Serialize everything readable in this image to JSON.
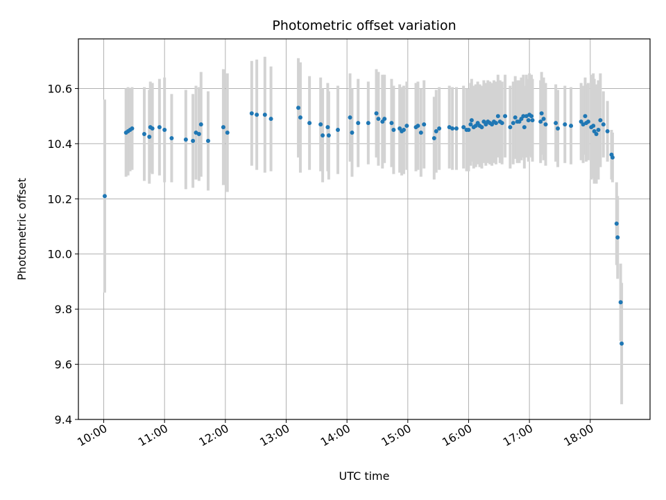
{
  "chart_data": {
    "type": "scatter",
    "title": "Photometric offset variation",
    "xlabel": "UTC time",
    "ylabel": "Photometric offset",
    "x_unit": "UTC clock time (HH:MM)",
    "xlim": [
      "09:35",
      "18:59"
    ],
    "ylim": [
      9.4,
      10.78
    ],
    "x_ticks": [
      "10:00",
      "11:00",
      "12:00",
      "13:00",
      "14:00",
      "15:00",
      "16:00",
      "17:00",
      "18:00"
    ],
    "y_ticks": [
      "9.4",
      "9.6",
      "9.8",
      "10.0",
      "10.2",
      "10.4",
      "10.6"
    ],
    "grid": true,
    "colors": {
      "points": "#1f77b4",
      "errorbars": "#d3d3d3",
      "grid": "#b0b0b0"
    },
    "series": [
      {
        "fields": [
          "time",
          "offset",
          "error"
        ],
        "points": [
          [
            "10:01",
            10.21,
            0.35
          ],
          [
            "10:22",
            10.44,
            0.16
          ],
          [
            "10:24",
            10.445,
            0.16
          ],
          [
            "10:26",
            10.45,
            0.15
          ],
          [
            "10:28",
            10.455,
            0.15
          ],
          [
            "10:40",
            10.435,
            0.17
          ],
          [
            "10:45",
            10.425,
            0.17
          ],
          [
            "10:46",
            10.46,
            0.165
          ],
          [
            "10:48",
            10.455,
            0.165
          ],
          [
            "10:55",
            10.46,
            0.175
          ],
          [
            "11:00",
            10.45,
            0.19
          ],
          [
            "11:07",
            10.42,
            0.16
          ],
          [
            "11:21",
            10.415,
            0.18
          ],
          [
            "11:28",
            10.41,
            0.17
          ],
          [
            "11:31",
            10.44,
            0.17
          ],
          [
            "11:34",
            10.435,
            0.17
          ],
          [
            "11:36",
            10.47,
            0.19
          ],
          [
            "11:43",
            10.41,
            0.18
          ],
          [
            "11:58",
            10.46,
            0.21
          ],
          [
            "12:02",
            10.44,
            0.215
          ],
          [
            "12:26",
            10.51,
            0.19
          ],
          [
            "12:31",
            10.505,
            0.2
          ],
          [
            "12:39",
            10.505,
            0.21
          ],
          [
            "12:45",
            10.49,
            0.19
          ],
          [
            "13:12",
            10.53,
            0.18
          ],
          [
            "13:14",
            10.495,
            0.2
          ],
          [
            "13:23",
            10.475,
            0.17
          ],
          [
            "13:34",
            10.47,
            0.17
          ],
          [
            "13:36",
            10.43,
            0.17
          ],
          [
            "13:41",
            10.46,
            0.16
          ],
          [
            "13:42",
            10.43,
            0.16
          ],
          [
            "13:51",
            10.45,
            0.16
          ],
          [
            "14:03",
            10.495,
            0.16
          ],
          [
            "14:05",
            10.44,
            0.16
          ],
          [
            "14:11",
            10.475,
            0.16
          ],
          [
            "14:21",
            10.475,
            0.15
          ],
          [
            "14:29",
            10.51,
            0.16
          ],
          [
            "14:31",
            10.49,
            0.17
          ],
          [
            "14:35",
            10.48,
            0.17
          ],
          [
            "14:37",
            10.49,
            0.16
          ],
          [
            "14:44",
            10.475,
            0.16
          ],
          [
            "14:46",
            10.45,
            0.16
          ],
          [
            "14:52",
            10.455,
            0.16
          ],
          [
            "14:54",
            10.445,
            0.16
          ],
          [
            "14:56",
            10.45,
            0.16
          ],
          [
            "14:59",
            10.465,
            0.16
          ],
          [
            "15:08",
            10.46,
            0.16
          ],
          [
            "15:10",
            10.465,
            0.16
          ],
          [
            "15:13",
            10.44,
            0.16
          ],
          [
            "15:16",
            10.47,
            0.16
          ],
          [
            "15:26",
            10.42,
            0.15
          ],
          [
            "15:28",
            10.445,
            0.15
          ],
          [
            "15:31",
            10.455,
            0.15
          ],
          [
            "15:41",
            10.46,
            0.15
          ],
          [
            "15:44",
            10.455,
            0.15
          ],
          [
            "15:48",
            10.455,
            0.15
          ],
          [
            "15:55",
            10.46,
            0.15
          ],
          [
            "15:58",
            10.45,
            0.15
          ],
          [
            "16:00",
            10.45,
            0.15
          ],
          [
            "16:02",
            10.47,
            0.15
          ],
          [
            "16:03",
            10.485,
            0.15
          ],
          [
            "16:05",
            10.46,
            0.15
          ],
          [
            "16:07",
            10.465,
            0.15
          ],
          [
            "16:09",
            10.475,
            0.15
          ],
          [
            "16:11",
            10.465,
            0.15
          ],
          [
            "16:13",
            10.46,
            0.15
          ],
          [
            "16:15",
            10.48,
            0.15
          ],
          [
            "16:17",
            10.47,
            0.15
          ],
          [
            "16:19",
            10.48,
            0.15
          ],
          [
            "16:21",
            10.475,
            0.15
          ],
          [
            "16:23",
            10.47,
            0.15
          ],
          [
            "16:25",
            10.48,
            0.15
          ],
          [
            "16:27",
            10.475,
            0.15
          ],
          [
            "16:29",
            10.5,
            0.15
          ],
          [
            "16:31",
            10.48,
            0.15
          ],
          [
            "16:33",
            10.475,
            0.15
          ],
          [
            "16:36",
            10.5,
            0.15
          ],
          [
            "16:41",
            10.46,
            0.15
          ],
          [
            "16:44",
            10.475,
            0.15
          ],
          [
            "16:46",
            10.495,
            0.15
          ],
          [
            "16:48",
            10.48,
            0.15
          ],
          [
            "16:50",
            10.48,
            0.15
          ],
          [
            "16:52",
            10.49,
            0.15
          ],
          [
            "16:54",
            10.5,
            0.15
          ],
          [
            "16:55",
            10.46,
            0.15
          ],
          [
            "16:57",
            10.5,
            0.15
          ],
          [
            "16:59",
            10.485,
            0.15
          ],
          [
            "17:00",
            10.505,
            0.15
          ],
          [
            "17:02",
            10.5,
            0.15
          ],
          [
            "17:03",
            10.485,
            0.15
          ],
          [
            "17:11",
            10.48,
            0.15
          ],
          [
            "17:12",
            10.51,
            0.15
          ],
          [
            "17:14",
            10.49,
            0.15
          ],
          [
            "17:16",
            10.47,
            0.15
          ],
          [
            "17:26",
            10.475,
            0.14
          ],
          [
            "17:28",
            10.455,
            0.14
          ],
          [
            "17:35",
            10.47,
            0.14
          ],
          [
            "17:41",
            10.465,
            0.14
          ],
          [
            "17:51",
            10.48,
            0.14
          ],
          [
            "17:53",
            10.47,
            0.14
          ],
          [
            "17:55",
            10.5,
            0.14
          ],
          [
            "17:56",
            10.475,
            0.14
          ],
          [
            "17:58",
            10.48,
            0.14
          ],
          [
            "18:01",
            10.46,
            0.19
          ],
          [
            "18:03",
            10.465,
            0.19
          ],
          [
            "18:04",
            10.445,
            0.19
          ],
          [
            "18:06",
            10.435,
            0.18
          ],
          [
            "18:08",
            10.45,
            0.18
          ],
          [
            "18:10",
            10.485,
            0.17
          ],
          [
            "18:13",
            10.47,
            0.12
          ],
          [
            "18:17",
            10.445,
            0.11
          ],
          [
            "18:21",
            10.36,
            0.09
          ],
          [
            "18:22",
            10.35,
            0.09
          ],
          [
            "18:26",
            10.11,
            0.15
          ],
          [
            "18:27",
            10.06,
            0.15
          ],
          [
            "18:30",
            9.825,
            0.14
          ],
          [
            "18:31",
            9.675,
            0.22
          ]
        ]
      }
    ]
  }
}
